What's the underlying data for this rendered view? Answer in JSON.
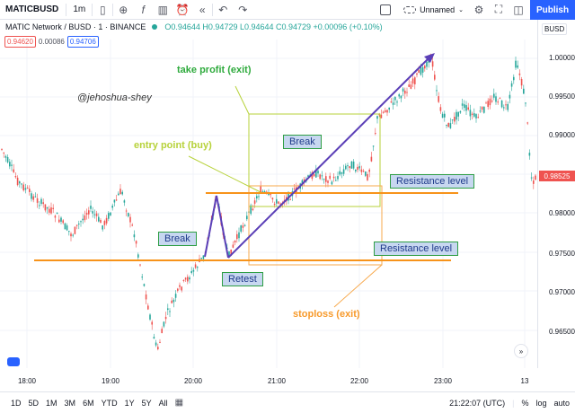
{
  "toolbar": {
    "symbol": "MATICBUSD",
    "interval": "1m",
    "layout_name": "Unnamed",
    "publish_label": "Publish",
    "icons": [
      "candles-icon",
      "plus-circle-icon",
      "fx-icon",
      "bars-icon",
      "alert-clock-icon",
      "replay-icon",
      "undo-icon",
      "redo-icon",
      "layout-checkbox-icon",
      "cloud-icon",
      "chevron-down-icon",
      "settings-icon",
      "fullscreen-icon",
      "camera-icon"
    ]
  },
  "header": {
    "title": "MATIC Network / BUSD · 1 · BINANCE",
    "ohlc": "O0.94644  H0.94729  L0.94644  C0.94729  +0.00096 (+0.10%)",
    "sell_price": "0.94620",
    "spread": "0.00086",
    "buy_price": "0.94706",
    "currency": "BUSD"
  },
  "price_axis": {
    "ticks": [
      "1.00000",
      "0.99500",
      "0.99000",
      "0.98500",
      "0.98000",
      "0.97500",
      "0.97000",
      "0.96500"
    ],
    "last_price": "0.98525",
    "last_price_color": "#ef5350"
  },
  "time_axis": {
    "ticks": [
      "18:00",
      "19:00",
      "20:00",
      "21:00",
      "22:00",
      "23:00",
      "13"
    ]
  },
  "annotations": {
    "watermark": "@jehoshua-shey",
    "take_profit": "take profit (exit)",
    "entry_point": "entry point (buy)",
    "stoploss": "stoploss (exit)",
    "break_1": "Break",
    "break_2": "Break",
    "retest": "Retest",
    "resistance_1": "Resistance level",
    "resistance_2": "Resistance level",
    "take_profit_color": "#2eaa3c",
    "entry_point_color": "#b7d23a",
    "stoploss_color": "#f79a2b",
    "line_color": "#f7931a"
  },
  "bottom_bar": {
    "ranges": [
      "1D",
      "5D",
      "1M",
      "3M",
      "6M",
      "YTD",
      "1Y",
      "5Y",
      "All"
    ],
    "clock": "21:22:07 (UTC)",
    "percent": "%",
    "log": "log",
    "auto": "auto"
  }
}
